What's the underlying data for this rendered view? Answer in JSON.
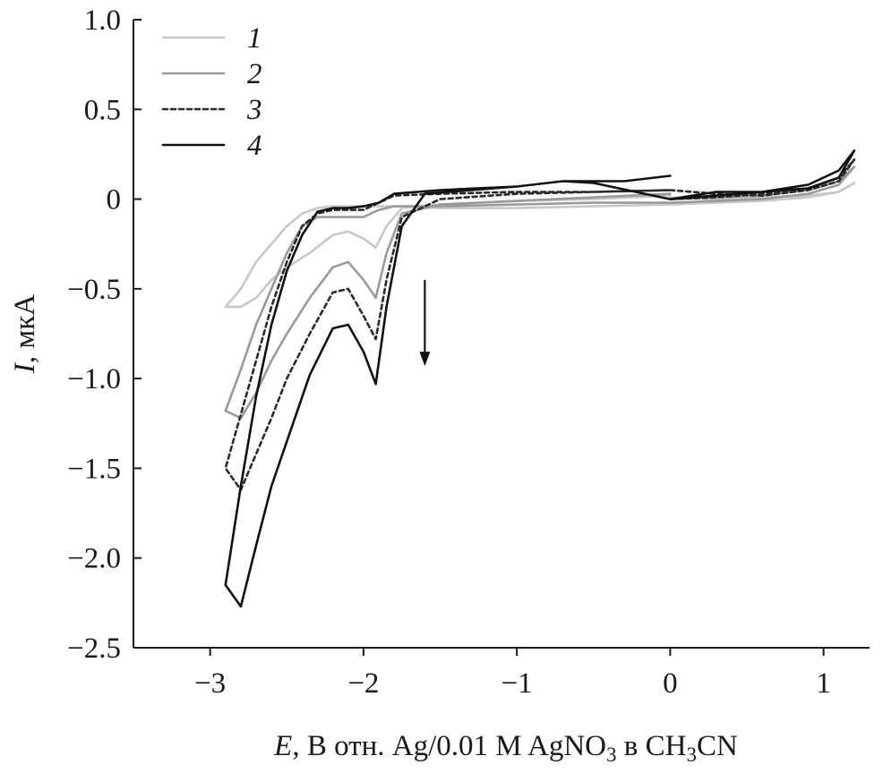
{
  "chart_data": {
    "type": "line",
    "xlabel": {
      "var": "E",
      "text": ", В отн. Ag/0.01 M AgNO",
      "sub1": "3",
      "mid": " в CH",
      "sub2": "3",
      "tail": "CN"
    },
    "ylabel": {
      "var": "I",
      "text": ", мкА"
    },
    "xlim": [
      -3.5,
      1.3
    ],
    "ylim": [
      -2.5,
      1.0
    ],
    "xticks": [
      -3,
      -2,
      -1,
      0,
      1
    ],
    "xtick_labels": [
      "−3",
      "−2",
      "−1",
      "0",
      "1"
    ],
    "yticks": [
      1.0,
      0.5,
      0,
      -0.5,
      -1.0,
      -1.5,
      -2.0,
      -2.5
    ],
    "ytick_labels": [
      "1.0",
      "0.5",
      "0",
      "−0.5",
      "−1.0",
      "−1.5",
      "−2.0",
      "−2.5"
    ],
    "grid": false,
    "legend_position": "top-left",
    "annotation": "downward arrow",
    "arrow": {
      "x": -1.6,
      "y_start": -0.45,
      "y_end": -0.93
    },
    "series": [
      {
        "name": "1",
        "color": "#c8c8c8",
        "dash": "solid",
        "x": [
          0.0,
          -0.5,
          -1.0,
          -1.5,
          -1.75,
          -1.85,
          -1.92,
          -2.0,
          -2.1,
          -2.2,
          -2.35,
          -2.5,
          -2.6,
          -2.7,
          -2.8,
          -2.9,
          -2.8,
          -2.7,
          -2.6,
          -2.5,
          -2.4,
          -2.3,
          -2.2,
          -2.1,
          -2.0,
          -1.9,
          -1.8,
          -1.5,
          -1.0,
          -0.5,
          0.0,
          0.3,
          0.6,
          0.9,
          1.1,
          1.2,
          1.1,
          0.9,
          0.6,
          0.3,
          0.0
        ],
        "y": [
          0.02,
          0.0,
          -0.01,
          -0.03,
          -0.05,
          -0.15,
          -0.27,
          -0.22,
          -0.18,
          -0.2,
          -0.3,
          -0.38,
          -0.45,
          -0.55,
          -0.6,
          -0.6,
          -0.5,
          -0.35,
          -0.25,
          -0.15,
          -0.08,
          -0.05,
          -0.04,
          -0.04,
          -0.04,
          -0.04,
          -0.04,
          -0.05,
          -0.05,
          -0.04,
          -0.03,
          -0.02,
          -0.01,
          0.01,
          0.04,
          0.09,
          0.04,
          0.02,
          0.01,
          0.0,
          0.01
        ]
      },
      {
        "name": "2",
        "color": "#9a9a9a",
        "dash": "solid",
        "x": [
          0.0,
          -0.5,
          -1.0,
          -1.5,
          -1.75,
          -1.85,
          -1.92,
          -2.0,
          -2.1,
          -2.2,
          -2.35,
          -2.5,
          -2.6,
          -2.7,
          -2.8,
          -2.9,
          -2.8,
          -2.7,
          -2.6,
          -2.5,
          -2.4,
          -2.3,
          -2.2,
          -2.1,
          -2.0,
          -1.9,
          -1.8,
          -1.5,
          -1.0,
          -0.5,
          0.0,
          0.3,
          0.6,
          0.9,
          1.1,
          1.2,
          1.1,
          0.9,
          0.6,
          0.3,
          0.0
        ],
        "y": [
          0.03,
          0.01,
          -0.01,
          -0.03,
          -0.08,
          -0.3,
          -0.55,
          -0.45,
          -0.35,
          -0.38,
          -0.55,
          -0.75,
          -0.9,
          -1.08,
          -1.22,
          -1.18,
          -0.95,
          -0.7,
          -0.5,
          -0.3,
          -0.15,
          -0.1,
          -0.1,
          -0.1,
          -0.1,
          -0.06,
          -0.04,
          -0.04,
          -0.03,
          -0.02,
          -0.02,
          -0.01,
          0.0,
          0.03,
          0.08,
          0.18,
          0.1,
          0.05,
          0.02,
          0.01,
          0.0
        ]
      },
      {
        "name": "3",
        "color": "#2b2b2b",
        "dash": "dotted",
        "x": [
          0.0,
          -0.5,
          -1.0,
          -1.5,
          -1.75,
          -1.85,
          -1.92,
          -2.0,
          -2.1,
          -2.2,
          -2.35,
          -2.5,
          -2.6,
          -2.7,
          -2.8,
          -2.9,
          -2.8,
          -2.7,
          -2.6,
          -2.5,
          -2.4,
          -2.3,
          -2.2,
          -2.1,
          -2.0,
          -1.9,
          -1.8,
          -1.5,
          -1.0,
          -0.5,
          0.0,
          0.3,
          0.6,
          0.9,
          1.1,
          1.2,
          1.1,
          0.9,
          0.6,
          0.3,
          0.0
        ],
        "y": [
          0.05,
          0.04,
          0.03,
          0.0,
          -0.1,
          -0.45,
          -0.78,
          -0.65,
          -0.5,
          -0.52,
          -0.75,
          -1.0,
          -1.22,
          -1.42,
          -1.62,
          -1.5,
          -1.2,
          -0.9,
          -0.6,
          -0.35,
          -0.15,
          -0.08,
          -0.06,
          -0.06,
          -0.06,
          -0.02,
          0.02,
          0.03,
          0.04,
          0.04,
          0.05,
          0.03,
          0.02,
          0.05,
          0.1,
          0.22,
          0.12,
          0.06,
          0.03,
          0.01,
          0.0
        ]
      },
      {
        "name": "4",
        "color": "#111111",
        "dash": "solid",
        "x": [
          0.0,
          -0.3,
          -0.7,
          -1.0,
          -1.3,
          -1.6,
          -1.75,
          -1.85,
          -1.92,
          -2.0,
          -2.1,
          -2.2,
          -2.35,
          -2.5,
          -2.6,
          -2.7,
          -2.8,
          -2.9,
          -2.8,
          -2.7,
          -2.6,
          -2.5,
          -2.4,
          -2.3,
          -2.2,
          -2.1,
          -2.0,
          -1.9,
          -1.8,
          -1.5,
          -1.0,
          -0.7,
          -0.5,
          0.0,
          0.3,
          0.6,
          0.9,
          1.1,
          1.2,
          1.1,
          0.9,
          0.6,
          0.3,
          0.0
        ],
        "y": [
          0.13,
          0.1,
          0.1,
          0.07,
          0.05,
          0.03,
          -0.15,
          -0.6,
          -1.03,
          -0.85,
          -0.7,
          -0.72,
          -0.98,
          -1.35,
          -1.6,
          -1.93,
          -2.27,
          -2.15,
          -1.6,
          -1.1,
          -0.7,
          -0.4,
          -0.2,
          -0.07,
          -0.05,
          -0.05,
          -0.04,
          -0.02,
          0.03,
          0.05,
          0.07,
          0.1,
          0.09,
          0.0,
          0.04,
          0.04,
          0.06,
          0.12,
          0.27,
          0.16,
          0.08,
          0.04,
          0.02,
          0.0
        ]
      }
    ]
  }
}
